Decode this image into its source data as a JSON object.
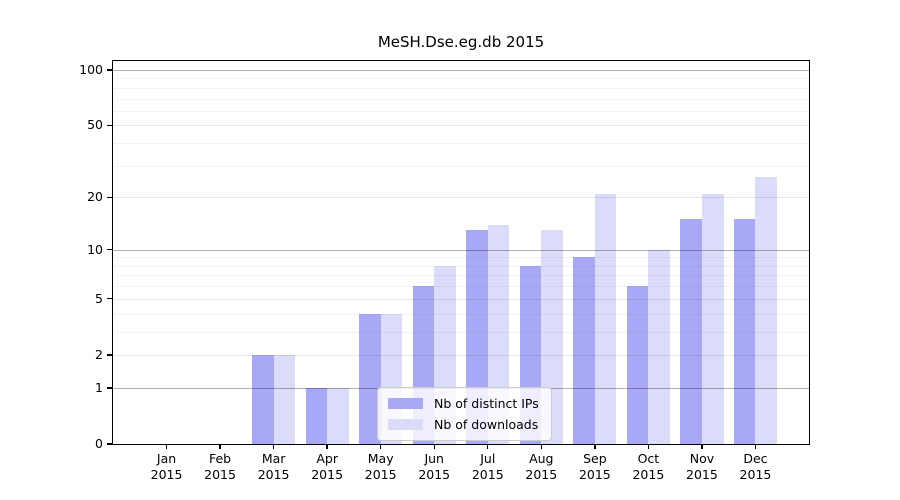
{
  "chart_data": {
    "type": "bar",
    "title": "MeSH.Dse.eg.db 2015",
    "categories": [
      "Jan 2015",
      "Feb 2015",
      "Mar 2015",
      "Apr 2015",
      "May 2015",
      "Jun 2015",
      "Jul 2015",
      "Aug 2015",
      "Sep 2015",
      "Oct 2015",
      "Nov 2015",
      "Dec 2015"
    ],
    "series": [
      {
        "name": "Nb of distinct IPs",
        "color": "#a8a8f6",
        "values": [
          0,
          0,
          2,
          1,
          4,
          6,
          13,
          8,
          9,
          6,
          15,
          15
        ]
      },
      {
        "name": "Nb of downloads",
        "color": "#dbdbfa",
        "values": [
          0,
          0,
          2,
          1,
          4,
          8,
          14,
          13,
          21,
          10,
          21,
          26
        ]
      }
    ],
    "y_axis": {
      "scale": "log10(1+x)",
      "tick_labels": [
        0,
        1,
        2,
        5,
        10,
        20,
        50,
        100
      ],
      "major_gridlines": [
        1,
        10,
        100
      ],
      "light_gridlines": [
        2,
        5,
        20,
        50
      ],
      "minor_gridlines": [
        3,
        4,
        6,
        7,
        8,
        9,
        30,
        40,
        60,
        70,
        80,
        90
      ],
      "ylim": [
        0,
        112
      ]
    },
    "x_axis": {
      "tick_label_line2": "2015"
    },
    "legend": {
      "position": "lower center",
      "entries": [
        "Nb of distinct IPs",
        "Nb of downloads"
      ]
    },
    "grid": true
  },
  "colors": {
    "spine": "#000000",
    "background": "#ffffff",
    "grid_major": "rgba(0,0,0,0.30)",
    "grid_light": "rgba(0,0,0,0.09)",
    "grid_minor": "rgba(0,0,0,0.045)",
    "bar_distinct_ips": "#a8a8f6",
    "bar_downloads": "#dbdbfa"
  }
}
